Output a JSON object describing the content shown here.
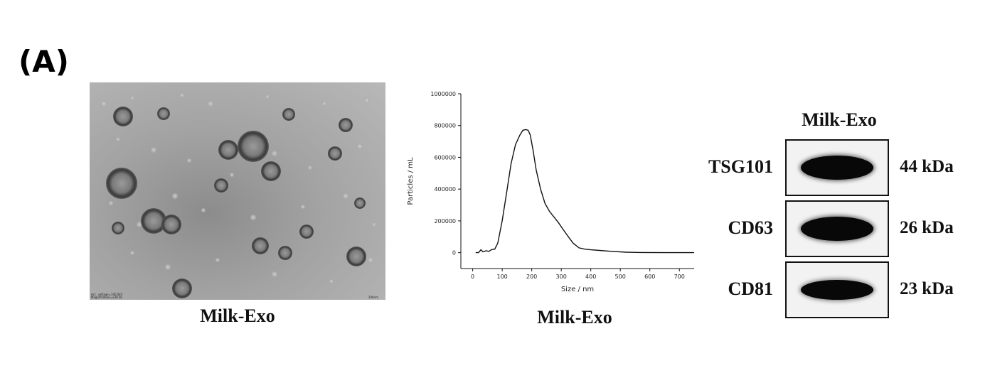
{
  "panel": {
    "label": "(A)"
  },
  "tem": {
    "caption": "Milk-Exo",
    "meta_line1": "Acc. voltage=100.0kV",
    "meta_line2": "Magnification=x30.0k",
    "scale_label": "200nm"
  },
  "nta": {
    "caption": "Milk-Exo"
  },
  "chart_data": {
    "type": "line",
    "xlabel": "Size / nm",
    "ylabel": "Particles / mL",
    "xlim": [
      -40,
      750
    ],
    "ylim": [
      -100000,
      1000000
    ],
    "xticks": [
      0,
      100,
      200,
      300,
      400,
      500,
      600,
      700
    ],
    "yticks": [
      0,
      200000,
      400000,
      600000,
      800000,
      1000000
    ],
    "series": [
      {
        "x": [
          10,
          20,
          28,
          35,
          45,
          55,
          65,
          75,
          85,
          100,
          115,
          130,
          145,
          160,
          170,
          180,
          188,
          195,
          205,
          215,
          230,
          245,
          260,
          275,
          290,
          305,
          320,
          340,
          360,
          380,
          400,
          430,
          470,
          520,
          570,
          650,
          750
        ],
        "y": [
          0,
          0,
          18000,
          5000,
          12000,
          8000,
          20000,
          22000,
          60000,
          200000,
          380000,
          560000,
          680000,
          740000,
          770000,
          775000,
          770000,
          740000,
          640000,
          520000,
          400000,
          310000,
          260000,
          225000,
          190000,
          150000,
          110000,
          60000,
          30000,
          22000,
          18000,
          14000,
          8000,
          3000,
          1000,
          0,
          0
        ]
      }
    ]
  },
  "western_blot": {
    "title": "Milk-Exo",
    "rows": [
      {
        "protein": "TSG101",
        "kda": "44 kDa",
        "intensity": 1.0
      },
      {
        "protein": "CD63",
        "kda": "26 kDa",
        "intensity": 1.0
      },
      {
        "protein": "CD81",
        "kda": "23 kDa",
        "intensity": 0.8
      }
    ]
  }
}
